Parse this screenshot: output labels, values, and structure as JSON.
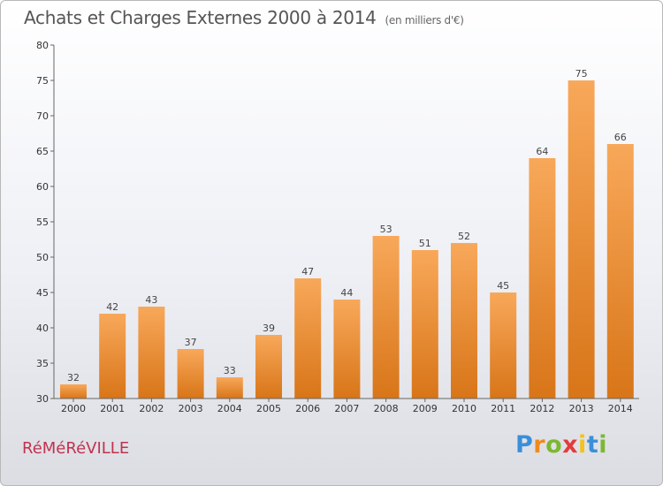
{
  "chart_data": {
    "type": "bar",
    "title": "Achats et Charges Externes 2000 à 2014",
    "unit": "(en milliers d'€)",
    "categories": [
      "2000",
      "2001",
      "2002",
      "2003",
      "2004",
      "2005",
      "2006",
      "2007",
      "2008",
      "2009",
      "2010",
      "2011",
      "2012",
      "2013",
      "2014"
    ],
    "values": [
      32,
      42,
      43,
      37,
      33,
      39,
      47,
      44,
      53,
      51,
      52,
      45,
      64,
      75,
      66
    ],
    "ylim": [
      30,
      80
    ],
    "yticks": [
      30,
      35,
      40,
      45,
      50,
      55,
      60,
      65,
      70,
      75,
      80
    ],
    "grid": false,
    "bar_color_top": "#f8a85a",
    "bar_color_bottom": "#d87518"
  },
  "footer": {
    "commune": "RéMéRéVILLE",
    "brand_letters": [
      "P",
      "r",
      "o",
      "x",
      "i",
      "t",
      "i"
    ],
    "brand_colors": [
      "#3a8fd8",
      "#f08a1c",
      "#7cb832",
      "#e23c3c",
      "#f2c31a",
      "#3a8fd8",
      "#7cb832"
    ]
  }
}
